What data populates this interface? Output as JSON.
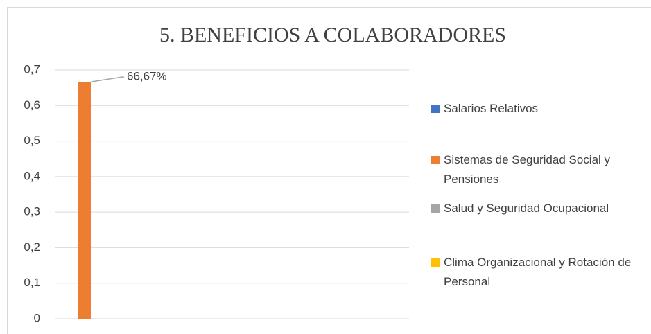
{
  "chart_data": {
    "type": "bar",
    "title": "5. BENEFICIOS A COLABORADORES",
    "categories": [
      null,
      null,
      null,
      null,
      null
    ],
    "series": [
      {
        "name": "Salarios Relativos",
        "color": "#4472c4",
        "values": [
          0,
          0,
          0,
          0,
          0
        ]
      },
      {
        "name": "Sistemas de Seguridad Social y Pensiones",
        "color": "#ed7d31",
        "values": [
          0.6667,
          0,
          0,
          0,
          0
        ],
        "value_labels": [
          "66,67%",
          null,
          null,
          null,
          null
        ]
      },
      {
        "name": "Salud y Seguridad Ocupacional",
        "color": "#a5a5a5",
        "values": [
          0,
          0,
          0,
          0,
          0
        ]
      },
      {
        "name": "Clima Organizacional y Rotación de Personal",
        "color": "#ffc000",
        "values": [
          0,
          0,
          0,
          0,
          0
        ]
      }
    ],
    "ylim": [
      0,
      0.7
    ],
    "yticks": [
      0,
      {
        "value": 0.1,
        "label": "0,1"
      },
      {
        "value": 0.2,
        "label": "0,2"
      },
      {
        "value": 0.3,
        "label": "0,3"
      },
      {
        "value": 0.4,
        "label": "0,4"
      },
      {
        "value": 0.5,
        "label": "0,5"
      },
      {
        "value": 0.6,
        "label": "0,6"
      },
      {
        "value": 0.7,
        "label": "0,7"
      }
    ],
    "grid": true,
    "legend": "right"
  }
}
